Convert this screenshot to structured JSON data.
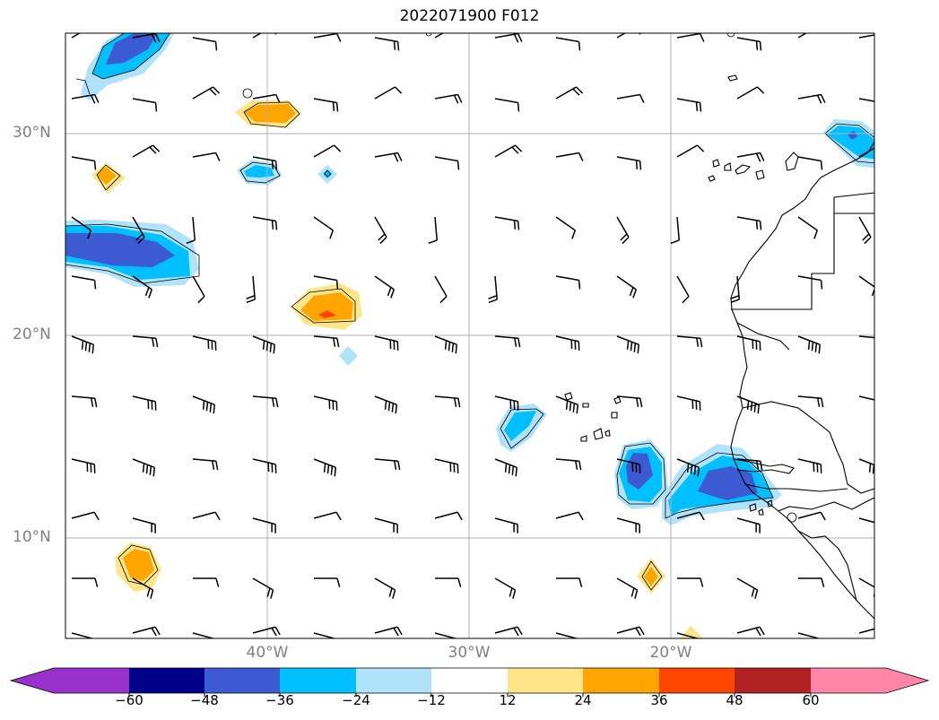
{
  "title": "2022071900 F012",
  "map": {
    "lat_labels": [
      "30°N",
      "20°N",
      "10°N"
    ],
    "lon_labels": [
      "40°W",
      "30°W",
      "20°W"
    ],
    "gridlines": true
  },
  "colorbar": {
    "ticks": [
      "−60",
      "−48",
      "−36",
      "−24",
      "−12",
      "12",
      "24",
      "36",
      "48",
      "60"
    ],
    "colors": [
      "#9932cc",
      "#00008b",
      "#3c5ad2",
      "#00bfff",
      "#b0e2fa",
      "#ffffff",
      "#fde68a",
      "#ffa500",
      "#ff4500",
      "#b22222",
      "#ff85a8"
    ],
    "extend": "both"
  },
  "colors": {
    "neg_light": "#b0e2fa",
    "neg_mid": "#00bfff",
    "neg_dark": "#3c5ad2",
    "pos_light": "#fde68a",
    "pos_mid": "#ffa500",
    "pos_dark": "#ff4500",
    "grid": "#b0b0b0",
    "coast": "#000000"
  }
}
